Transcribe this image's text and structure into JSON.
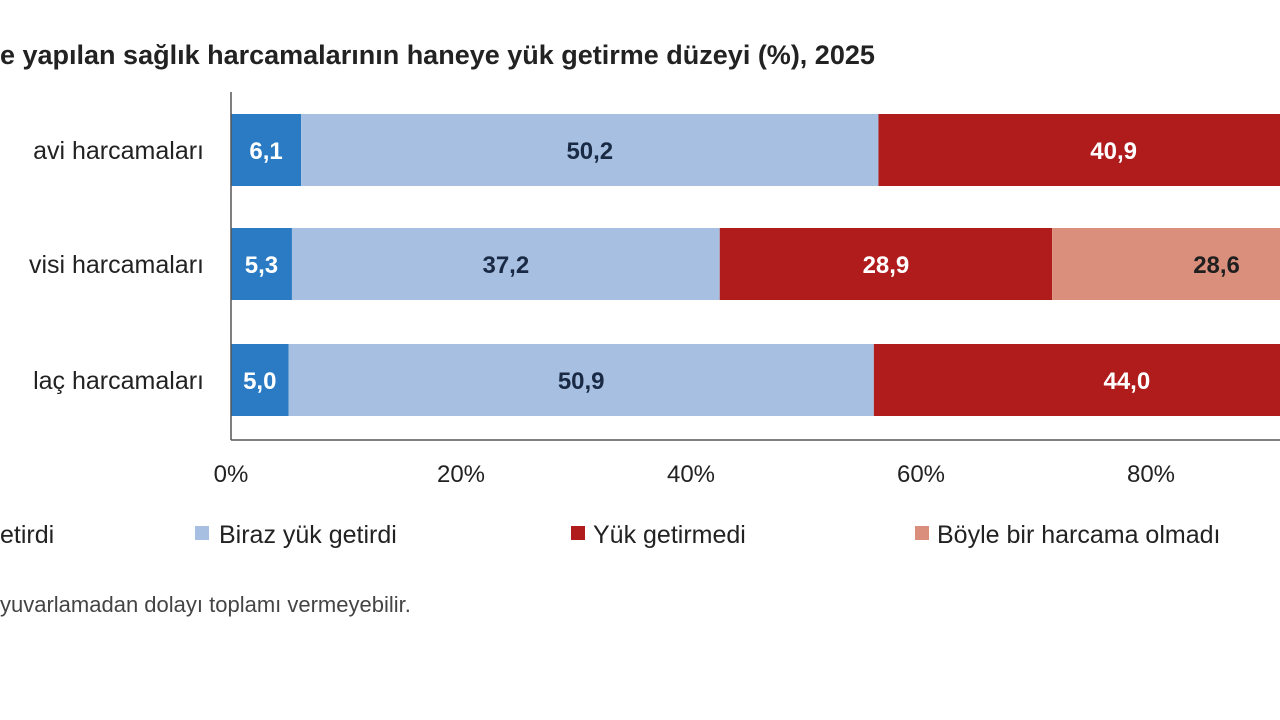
{
  "title": "e yapılan sağlık harcamalarının haneye yük getirme düzeyi (%), 2025",
  "footnote": "yuvarlamadan dolayı toplamı vermeyebilir.",
  "colors": {
    "cok_yuk": "#2a7bc4",
    "biraz_yuk": "#a7c0e2",
    "yuk_getirmedi": "#b01c1c",
    "harcama_olmadi": "#d98f7c"
  },
  "chart_data": {
    "type": "bar",
    "orientation": "horizontal",
    "stacked": true,
    "categories": [
      "avi harcamaları",
      "visi harcamaları",
      "laç harcamaları"
    ],
    "series": [
      {
        "name": "etirdi",
        "color_key": "cok_yuk",
        "values": [
          6.1,
          5.3,
          5.0
        ],
        "labels": [
          "6,1",
          "5,3",
          "5,0"
        ],
        "label_color": "#ffffff"
      },
      {
        "name": "Biraz yük getirdi",
        "color_key": "biraz_yuk",
        "values": [
          50.2,
          37.2,
          50.9
        ],
        "labels": [
          "50,2",
          "37,2",
          "50,9"
        ],
        "label_color": "#1a2a44"
      },
      {
        "name": "Yük getirmedi",
        "color_key": "yuk_getirmedi",
        "values": [
          40.9,
          28.9,
          44.0
        ],
        "labels": [
          "40,9",
          "28,9",
          "44,0"
        ],
        "label_color": "#ffffff"
      },
      {
        "name": "Böyle bir harcama olmadı",
        "color_key": "harcama_olmadi",
        "values": [
          0,
          28.6,
          0
        ],
        "labels": [
          "",
          "28,6",
          ""
        ],
        "label_color": "#1f1f1f"
      }
    ],
    "xaxis": {
      "ticks": [
        0,
        20,
        40,
        60,
        80
      ],
      "tick_labels": [
        "0%",
        "20%",
        "40%",
        "60%",
        "80%"
      ],
      "range": [
        0,
        100
      ]
    },
    "grid": false,
    "legend_position": "bottom"
  }
}
